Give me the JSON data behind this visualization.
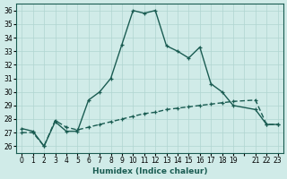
{
  "xlabel": "Humidex (Indice chaleur)",
  "bg_color": "#d0ebe8",
  "grid_color": "#b0d5d0",
  "line_color": "#1a5c52",
  "xlim": [
    -0.5,
    23.5
  ],
  "ylim": [
    25.5,
    36.5
  ],
  "yticks": [
    26,
    27,
    28,
    29,
    30,
    31,
    32,
    33,
    34,
    35,
    36
  ],
  "xticks": [
    0,
    1,
    2,
    3,
    4,
    5,
    6,
    7,
    8,
    9,
    10,
    11,
    12,
    13,
    14,
    15,
    16,
    17,
    18,
    19,
    20,
    21,
    22,
    23
  ],
  "xtick_labels": [
    "0",
    "1",
    "2",
    "3",
    "4",
    "5",
    "6",
    "7",
    "8",
    "9",
    "10",
    "11",
    "12",
    "13",
    "14",
    "15",
    "16",
    "17",
    "18",
    "19",
    "",
    "21",
    "22",
    "23"
  ],
  "line1_x": [
    0,
    1,
    2,
    3,
    4,
    5,
    6,
    7,
    8,
    9,
    10,
    11,
    12,
    13,
    14,
    15,
    16,
    17,
    18,
    19,
    21,
    22,
    23
  ],
  "line1_y": [
    27.3,
    27.1,
    26.0,
    27.8,
    27.1,
    27.1,
    29.4,
    30.0,
    31.0,
    33.5,
    36.0,
    35.8,
    36.0,
    33.4,
    33.0,
    32.5,
    33.3,
    30.6,
    30.0,
    29.0,
    28.7,
    27.6,
    27.6
  ],
  "line2_x": [
    0,
    1,
    2,
    3,
    4,
    5,
    6,
    7,
    8,
    9,
    10,
    11,
    12,
    13,
    14,
    15,
    16,
    17,
    18,
    19,
    21,
    22,
    23
  ],
  "line2_y": [
    27.0,
    27.0,
    26.0,
    27.9,
    27.4,
    27.2,
    27.4,
    27.6,
    27.8,
    28.0,
    28.2,
    28.4,
    28.5,
    28.7,
    28.8,
    28.9,
    29.0,
    29.1,
    29.2,
    29.3,
    29.4,
    27.6,
    27.6
  ]
}
